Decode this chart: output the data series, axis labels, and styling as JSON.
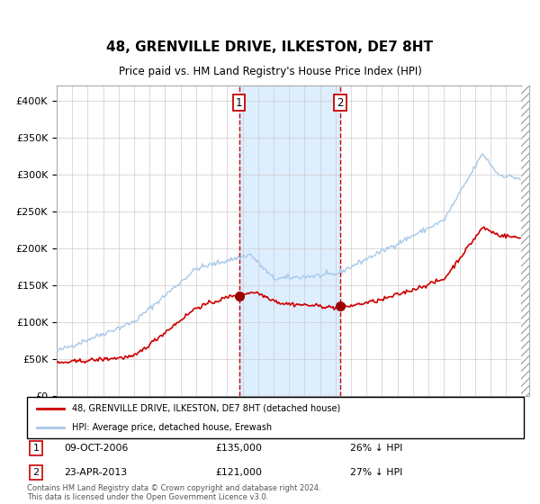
{
  "title": "48, GRENVILLE DRIVE, ILKESTON, DE7 8HT",
  "subtitle": "Price paid vs. HM Land Registry's House Price Index (HPI)",
  "hpi_label": "HPI: Average price, detached house, Erewash",
  "property_label": "48, GRENVILLE DRIVE, ILKESTON, DE7 8HT (detached house)",
  "sale1_date": "09-OCT-2006",
  "sale1_price": 135000,
  "sale1_pct": "26% ↓ HPI",
  "sale2_date": "23-APR-2013",
  "sale2_price": 121000,
  "sale2_pct": "27% ↓ HPI",
  "sale1_year": 2006.77,
  "sale2_year": 2013.31,
  "hpi_color": "#a8c8e8",
  "property_color": "#cc0000",
  "vline_color": "#cc0000",
  "shade_color": "#ddeeff",
  "footer": "Contains HM Land Registry data © Crown copyright and database right 2024.\nThis data is licensed under the Open Government Licence v3.0.",
  "ylim": [
    0,
    420000
  ],
  "xlim_start": 1995.0,
  "xlim_end": 2025.5
}
